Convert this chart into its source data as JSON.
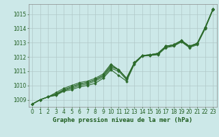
{
  "title": "Graphe pression niveau de la mer (hPa)",
  "bg_color": "#cce8e8",
  "grid_color": "#b0c8c8",
  "line_color": "#2d6b2d",
  "xlim": [
    -0.5,
    23.5
  ],
  "ylim": [
    1008.5,
    1015.7
  ],
  "yticks": [
    1009,
    1010,
    1011,
    1012,
    1013,
    1014,
    1015
  ],
  "xticks": [
    0,
    1,
    2,
    3,
    4,
    5,
    6,
    7,
    8,
    9,
    10,
    11,
    12,
    13,
    14,
    15,
    16,
    17,
    18,
    19,
    20,
    21,
    22,
    23
  ],
  "series": [
    [
      1008.7,
      1009.0,
      1009.2,
      1009.3,
      1009.6,
      1009.7,
      1009.9,
      1010.0,
      1010.15,
      1010.5,
      1011.1,
      1010.7,
      1010.3,
      1011.5,
      1012.05,
      1012.1,
      1012.15,
      1012.65,
      1012.75,
      1013.05,
      1012.65,
      1012.85,
      1013.95,
      1015.3
    ],
    [
      1008.7,
      1009.0,
      1009.2,
      1009.35,
      1009.65,
      1009.8,
      1010.0,
      1010.1,
      1010.3,
      1010.6,
      1011.2,
      1011.0,
      1010.4,
      1011.55,
      1012.1,
      1012.1,
      1012.2,
      1012.7,
      1012.8,
      1013.1,
      1012.7,
      1012.9,
      1014.0,
      1015.3
    ],
    [
      1008.7,
      1009.0,
      1009.2,
      1009.4,
      1009.7,
      1009.9,
      1010.1,
      1010.2,
      1010.4,
      1010.7,
      1011.3,
      1011.1,
      1010.5,
      1011.6,
      1012.1,
      1012.15,
      1012.25,
      1012.75,
      1012.85,
      1013.15,
      1012.75,
      1012.95,
      1014.05,
      1015.3
    ],
    [
      1008.7,
      1009.0,
      1009.2,
      1009.4,
      1009.7,
      1009.9,
      1010.1,
      1010.2,
      1010.4,
      1010.7,
      1011.4,
      1011.1,
      1010.5,
      1011.6,
      1012.1,
      1012.15,
      1012.25,
      1012.75,
      1012.85,
      1013.15,
      1012.75,
      1012.95,
      1014.05,
      1015.35
    ],
    [
      1008.7,
      1009.0,
      1009.2,
      1009.5,
      1009.8,
      1010.0,
      1010.2,
      1010.3,
      1010.5,
      1010.8,
      1011.5,
      1011.1,
      1010.5,
      1011.6,
      1012.1,
      1012.15,
      1012.25,
      1012.75,
      1012.85,
      1013.15,
      1012.75,
      1012.95,
      1014.05,
      1015.35
    ]
  ],
  "marker": "D",
  "marker_size": 2.0,
  "linewidth": 0.8,
  "font_color": "#1e5c1e",
  "tick_fontsize": 5.5,
  "title_fontsize": 6.5
}
